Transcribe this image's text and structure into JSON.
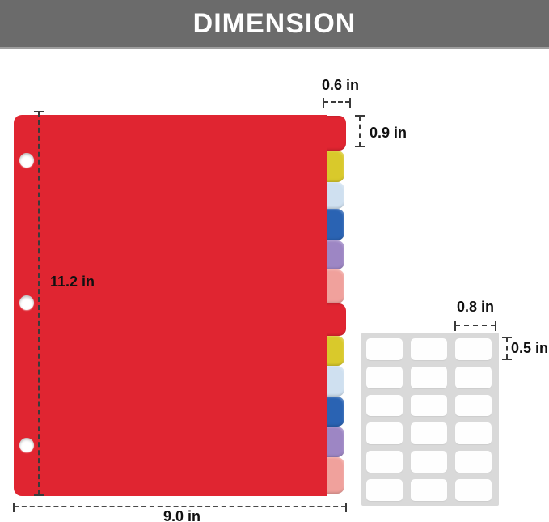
{
  "title": "DIMENSION",
  "banner": {
    "bg": "#6b6b6b",
    "text_color": "#ffffff"
  },
  "divider": {
    "description": "red 3-hole binder divider sheet with 12 color tabs",
    "sheet_color": "#e02531",
    "hole_count": 3,
    "tabs": [
      {
        "name": "red",
        "color": "#e02531"
      },
      {
        "name": "yellow",
        "color": "#d9c92b"
      },
      {
        "name": "light-blue",
        "color": "#cfe0f0"
      },
      {
        "name": "blue",
        "color": "#2a63b3"
      },
      {
        "name": "purple",
        "color": "#9d86c4"
      },
      {
        "name": "pink",
        "color": "#f0a19c"
      },
      {
        "name": "red",
        "color": "#e02531"
      },
      {
        "name": "yellow",
        "color": "#d9c92b"
      },
      {
        "name": "light-blue",
        "color": "#cfe0f0"
      },
      {
        "name": "blue",
        "color": "#2a63b3"
      },
      {
        "name": "purple",
        "color": "#9d86c4"
      },
      {
        "name": "pink",
        "color": "#f0a19c"
      }
    ]
  },
  "label_sheet": {
    "columns": 3,
    "rows": 6,
    "sheet_color": "#d9d9d9",
    "label_color": "#fefefe"
  },
  "dimensions": {
    "tab_width": "0.6 in",
    "tab_height": "0.9 in",
    "sheet_height": "11.2 in",
    "sheet_width": "9.0 in",
    "label_width": "0.8 in",
    "label_height": "0.5 in"
  }
}
